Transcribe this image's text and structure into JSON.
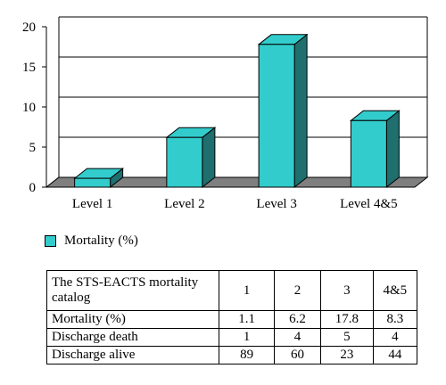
{
  "chart_data": {
    "type": "bar",
    "categories": [
      "Level 1",
      "Level 2",
      "Level 3",
      "Level 4&5"
    ],
    "series": [
      {
        "name": "Mortality (%)",
        "values": [
          1.1,
          6.2,
          17.8,
          8.3
        ]
      }
    ],
    "ylim": [
      0,
      20
    ],
    "yticks": [
      "0",
      "5",
      "10",
      "15",
      "20"
    ],
    "grid": true,
    "legend_position": "bottom-left",
    "colors": {
      "bar_front": "#33cccc",
      "bar_side": "#1f6f6f",
      "bar_top": "#33cccc",
      "floor": "#7f7f7f"
    }
  },
  "legend": {
    "label": "Mortality (%)"
  },
  "table": {
    "header_label": "The STS-EACTS mortality catalog",
    "columns": [
      "1",
      "2",
      "3",
      "4&5"
    ],
    "rows": [
      {
        "label": "Mortality (%)",
        "values": [
          "1.1",
          "6.2",
          "17.8",
          "8.3"
        ]
      },
      {
        "label": "Discharge death",
        "values": [
          "1",
          "4",
          "5",
          "4"
        ]
      },
      {
        "label": "Discharge alive",
        "values": [
          "89",
          "60",
          "23",
          "44"
        ]
      }
    ]
  }
}
